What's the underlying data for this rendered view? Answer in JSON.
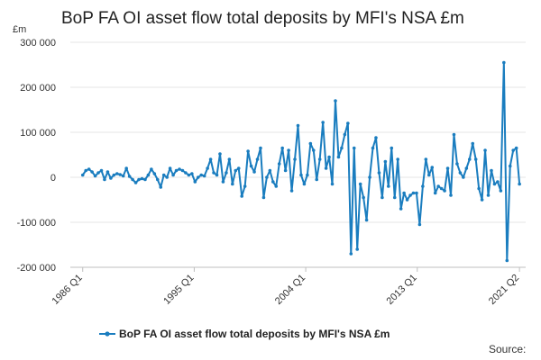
{
  "chart_data": {
    "type": "line",
    "title": "BoP FA OI asset flow total deposits by MFI's NSA £m",
    "ylabel": "£m",
    "ylim": [
      -200000,
      300000
    ],
    "yticks": [
      -200000,
      -100000,
      0,
      100000,
      200000,
      300000
    ],
    "ytick_labels": [
      "-200 000",
      "-100 000",
      "0",
      "100 000",
      "200 000",
      "300 000"
    ],
    "xticks": [
      {
        "label": "1986 Q1",
        "t": 1986.0
      },
      {
        "label": "1995 Q1",
        "t": 1995.0
      },
      {
        "label": "2004 Q1",
        "t": 2004.0
      },
      {
        "label": "2013 Q1",
        "t": 2013.0
      },
      {
        "label": "2021 Q2",
        "t": 2021.25
      }
    ],
    "x_start": "1986 Q1",
    "x_end": "2021 Q2",
    "grid": true,
    "legend_position": "bottom",
    "color": "#1a7dbf",
    "series": [
      {
        "name": "BoP FA OI asset flow total deposits by MFI's NSA £m",
        "values": [
          5000,
          15000,
          18000,
          12000,
          3000,
          10000,
          15000,
          -5000,
          12000,
          -2000,
          5000,
          8000,
          6000,
          3000,
          20000,
          2000,
          -5000,
          -12000,
          -5000,
          -3000,
          -5000,
          5000,
          18000,
          8000,
          -5000,
          -22000,
          5000,
          0,
          20000,
          5000,
          15000,
          18000,
          15000,
          10000,
          5000,
          8000,
          -10000,
          0,
          5000,
          3000,
          20000,
          40000,
          10000,
          5000,
          52000,
          -10000,
          10000,
          40000,
          -15000,
          15000,
          20000,
          -42000,
          -20000,
          58000,
          25000,
          12000,
          40000,
          65000,
          -45000,
          0,
          15000,
          -10000,
          -20000,
          30000,
          65000,
          15000,
          60000,
          -30000,
          40000,
          115000,
          5000,
          -15000,
          5000,
          75000,
          60000,
          -5000,
          40000,
          122000,
          20000,
          45000,
          -15000,
          170000,
          45000,
          65000,
          95000,
          120000,
          -170000,
          65000,
          -160000,
          -15000,
          -45000,
          -95000,
          0,
          65000,
          88000,
          10000,
          -45000,
          35000,
          -20000,
          65000,
          -45000,
          40000,
          -70000,
          -35000,
          -50000,
          -40000,
          -35000,
          -35000,
          -105000,
          -20000,
          40000,
          5000,
          22000,
          -35000,
          -20000,
          -25000,
          -30000,
          20000,
          -40000,
          95000,
          30000,
          10000,
          0,
          20000,
          40000,
          75000,
          40000,
          -25000,
          -50000,
          60000,
          -40000,
          15000,
          -15000,
          -10000,
          -30000,
          255000,
          -185000,
          25000,
          60000,
          65000,
          -15000
        ]
      }
    ]
  },
  "legend": {
    "label": "BoP FA OI asset flow total deposits by MFI's NSA £m"
  },
  "source_label": "Source:"
}
